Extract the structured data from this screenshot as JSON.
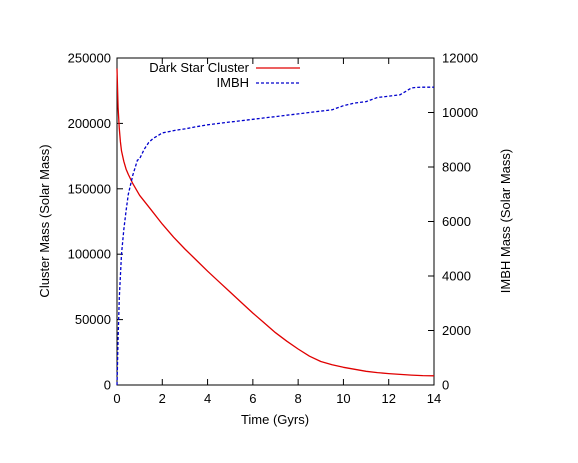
{
  "chart_data": {
    "type": "line",
    "xlabel": "Time (Gyrs)",
    "ylabel": "Cluster Mass (Solar Mass)",
    "y2label": "IMBH Mass (Solar Mass)",
    "xlim": [
      0,
      14
    ],
    "ylim": [
      0,
      250000
    ],
    "y2lim": [
      0,
      12000
    ],
    "x_ticks": [
      0,
      2,
      4,
      6,
      8,
      10,
      12,
      14
    ],
    "y_ticks": [
      0,
      50000,
      100000,
      150000,
      200000,
      250000
    ],
    "y2_ticks": [
      0,
      2000,
      4000,
      6000,
      8000,
      10000,
      12000
    ],
    "legend_position": "top-right",
    "series": [
      {
        "name": "Dark Star Cluster",
        "axis": "left",
        "color": "#e00000",
        "style": "solid",
        "x": [
          0,
          0.02,
          0.05,
          0.1,
          0.15,
          0.2,
          0.3,
          0.4,
          0.5,
          0.7,
          1.0,
          1.5,
          2.0,
          2.5,
          3.0,
          3.5,
          4.0,
          4.5,
          5.0,
          5.5,
          6.0,
          6.5,
          7.0,
          7.5,
          8.0,
          8.5,
          9.0,
          9.5,
          10.0,
          10.5,
          11.0,
          11.5,
          12.0,
          12.5,
          13.0,
          13.5,
          14.0
        ],
        "y": [
          242000,
          228000,
          212000,
          196000,
          186000,
          179000,
          171000,
          165000,
          161000,
          154000,
          145000,
          134000,
          123000,
          113000,
          104000,
          95500,
          87000,
          79000,
          71000,
          63000,
          55000,
          47500,
          40000,
          33500,
          27500,
          22000,
          18000,
          15500,
          13500,
          12000,
          10500,
          9500,
          8700,
          8100,
          7600,
          7200,
          7000
        ]
      },
      {
        "name": "IMBH",
        "axis": "right",
        "color": "#0000cc",
        "style": "dashed",
        "x": [
          0,
          0.05,
          0.1,
          0.2,
          0.3,
          0.4,
          0.5,
          0.7,
          0.9,
          1.0,
          1.2,
          1.4,
          1.6,
          1.8,
          2.0,
          2.3,
          2.6,
          3.0,
          3.5,
          4.0,
          4.5,
          5.0,
          5.5,
          6.0,
          6.5,
          7.0,
          7.5,
          8.0,
          8.5,
          9.0,
          9.5,
          10.0,
          10.5,
          11.0,
          11.5,
          12.0,
          12.5,
          13.0,
          13.2,
          13.5,
          14.0
        ],
        "y": [
          0,
          1700,
          3200,
          4800,
          5700,
          6400,
          7000,
          7700,
          8250,
          8300,
          8650,
          8900,
          9050,
          9150,
          9250,
          9300,
          9350,
          9400,
          9480,
          9550,
          9600,
          9650,
          9700,
          9750,
          9800,
          9850,
          9900,
          9950,
          10000,
          10050,
          10100,
          10250,
          10350,
          10400,
          10550,
          10600,
          10650,
          10900,
          10920,
          10930,
          10930
        ]
      }
    ]
  }
}
